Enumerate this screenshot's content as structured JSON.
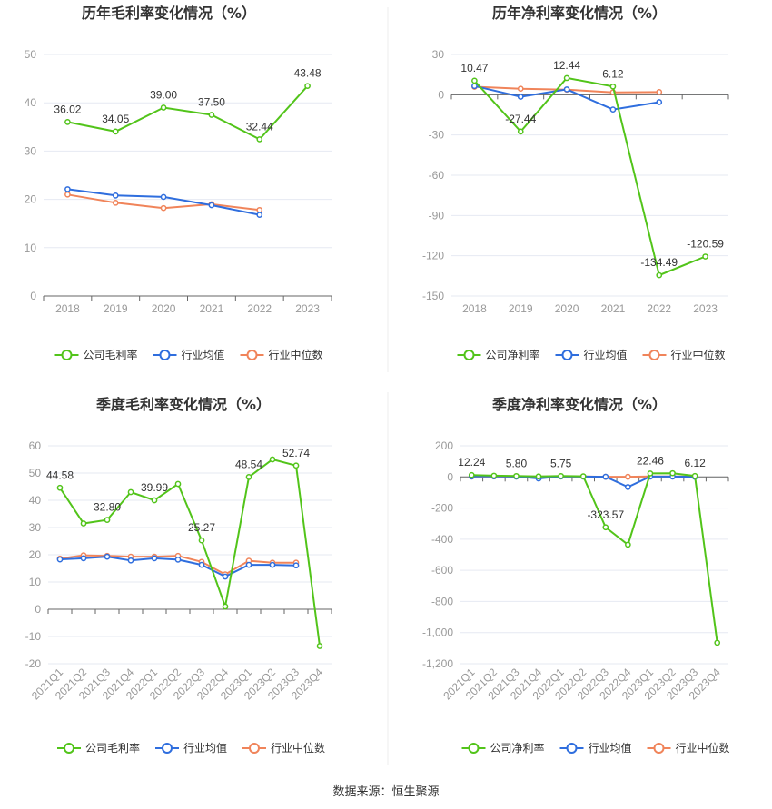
{
  "source_label": "数据来源：恒生聚源",
  "colors": {
    "company": "#52c41a",
    "industry_avg": "#2f6ede",
    "industry_median": "#f0845a",
    "grid": "#e6e9f2",
    "axis": "#666666",
    "divider": "#eeeeee"
  },
  "chart_data": [
    {
      "type": "line",
      "title": "历年毛利率变化情况（%）",
      "categories": [
        "2018",
        "2019",
        "2020",
        "2021",
        "2022",
        "2023"
      ],
      "ylim": [
        0,
        50
      ],
      "yticks": [
        0,
        10,
        20,
        30,
        40,
        50
      ],
      "series": [
        {
          "name": "公司毛利率",
          "color_key": "company",
          "values": [
            36.02,
            34.05,
            39.0,
            37.5,
            32.44,
            43.48
          ],
          "labels": [
            "36.02",
            "34.05",
            "39.00",
            "37.50",
            "32.44",
            "43.48"
          ]
        },
        {
          "name": "行业均值",
          "color_key": "industry_avg",
          "values": [
            22.1,
            20.8,
            20.5,
            18.8,
            16.8,
            null
          ]
        },
        {
          "name": "行业中位数",
          "color_key": "industry_median",
          "values": [
            21.0,
            19.3,
            18.2,
            19.0,
            17.8,
            null
          ]
        }
      ]
    },
    {
      "type": "line",
      "title": "历年净利率变化情况（%）",
      "categories": [
        "2018",
        "2019",
        "2020",
        "2021",
        "2022",
        "2023"
      ],
      "ylim": [
        -150,
        30
      ],
      "yticks": [
        -150,
        -120,
        -90,
        -60,
        -30,
        0,
        30
      ],
      "series": [
        {
          "name": "公司净利率",
          "color_key": "company",
          "values": [
            10.47,
            -27.44,
            12.44,
            6.12,
            -134.49,
            -120.59
          ],
          "labels": [
            "10.47",
            "-27.44",
            "12.44",
            "6.12",
            "-134.49",
            "-120.59"
          ]
        },
        {
          "name": "行业均值",
          "color_key": "industry_avg",
          "values": [
            6.5,
            -1.5,
            4.0,
            -11.0,
            -5.5,
            null
          ]
        },
        {
          "name": "行业中位数",
          "color_key": "industry_median",
          "values": [
            6.0,
            4.5,
            3.8,
            1.8,
            2.0,
            null
          ]
        }
      ]
    },
    {
      "type": "line",
      "title": "季度毛利率变化情况（%）",
      "categories": [
        "2021Q1",
        "2021Q2",
        "2021Q3",
        "2021Q4",
        "2022Q1",
        "2022Q2",
        "2022Q3",
        "2022Q4",
        "2023Q1",
        "2023Q2",
        "2023Q3",
        "2023Q4"
      ],
      "ylim": [
        -20,
        60
      ],
      "yticks": [
        -20,
        -10,
        0,
        10,
        20,
        30,
        40,
        50,
        60
      ],
      "series": [
        {
          "name": "公司毛利率",
          "color_key": "company",
          "values": [
            44.58,
            31.5,
            32.8,
            43.0,
            39.99,
            46.0,
            25.27,
            1.0,
            48.54,
            55.0,
            52.74,
            -13.5
          ],
          "labels": [
            "44.58",
            "",
            "32.80",
            "",
            "39.99",
            "",
            "25.27",
            "",
            "48.54",
            "",
            "52.74",
            ""
          ]
        },
        {
          "name": "行业均值",
          "color_key": "industry_avg",
          "values": [
            18.3,
            18.7,
            19.3,
            17.9,
            18.7,
            18.2,
            16.3,
            12.0,
            16.3,
            16.3,
            16.1,
            null
          ]
        },
        {
          "name": "行业中位数",
          "color_key": "industry_median",
          "values": [
            18.6,
            19.8,
            19.6,
            19.3,
            19.3,
            19.6,
            17.4,
            12.8,
            17.8,
            17.1,
            17.1,
            null
          ]
        }
      ]
    },
    {
      "type": "line",
      "title": "季度净利率变化情况（%）",
      "categories": [
        "2021Q1",
        "2021Q2",
        "2021Q3",
        "2021Q4",
        "2022Q1",
        "2022Q2",
        "2022Q3",
        "2022Q4",
        "2023Q1",
        "2023Q2",
        "2023Q3",
        "2023Q4"
      ],
      "ylim": [
        -1200,
        200
      ],
      "yticks": [
        -1200,
        -1000,
        -800,
        -600,
        -400,
        -200,
        0,
        200
      ],
      "ytick_labels": [
        "-1,200",
        "-1,000",
        "-800",
        "-600",
        "-400",
        "-200",
        "0",
        "200"
      ],
      "series": [
        {
          "name": "公司净利率",
          "color_key": "company",
          "values": [
            12.24,
            8.0,
            5.8,
            3.0,
            5.75,
            4.0,
            -323.57,
            -435.0,
            22.46,
            24.0,
            6.12,
            -1065.0
          ],
          "labels": [
            "12.24",
            "",
            "5.80",
            "",
            "5.75",
            "",
            "-323.57",
            "",
            "22.46",
            "",
            "6.12",
            ""
          ]
        },
        {
          "name": "行业均值",
          "color_key": "industry_avg",
          "values": [
            3.0,
            4.0,
            2.0,
            -10.0,
            3.0,
            2.0,
            1.0,
            -65.0,
            2.0,
            2.0,
            1.0,
            null
          ]
        },
        {
          "name": "行业中位数",
          "color_key": "industry_median",
          "values": [
            2.0,
            3.0,
            2.0,
            2.0,
            3.0,
            3.0,
            1.0,
            1.0,
            3.0,
            3.0,
            2.0,
            null
          ]
        }
      ]
    }
  ]
}
